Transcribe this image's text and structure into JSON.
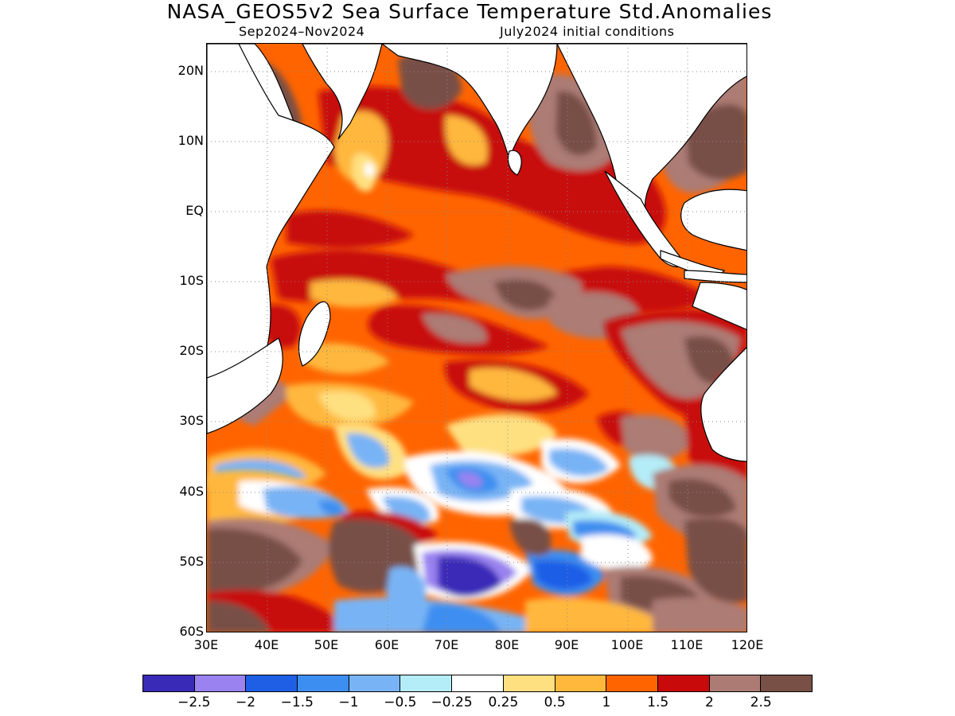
{
  "title": "NASA_GEOS5v2 Sea Surface Temperature Std.Anomalies",
  "subtitle_left": "Sep2024–Nov2024",
  "subtitle_right": "July2024 initial conditions",
  "map": {
    "lat_labels": [
      "20N",
      "10N",
      "EQ",
      "10S",
      "20S",
      "30S",
      "40S",
      "50S",
      "60S"
    ],
    "lon_labels": [
      "30E",
      "40E",
      "50E",
      "60E",
      "70E",
      "80E",
      "90E",
      "100E",
      "110E",
      "120E"
    ],
    "lon_range": [
      30,
      120
    ],
    "lat_range": [
      -60,
      24
    ],
    "land_color": "#ffffff",
    "coastline_color": "#000000",
    "gridline_style": "dotted"
  },
  "colorbar": {
    "colors": [
      "#3a2ab8",
      "#9a82f0",
      "#1e5fe6",
      "#3c8ef0",
      "#78b4f5",
      "#b4ecf8",
      "#ffffff",
      "#ffe080",
      "#ffb83c",
      "#ff6400",
      "#c80a0a",
      "#ac7c74",
      "#785046"
    ],
    "labels": [
      "−2.5",
      "−2",
      "−1.5",
      "−1",
      "−0.5",
      "−0.25",
      "0.25",
      "0.5",
      "1",
      "1.5",
      "2",
      "2.5"
    ]
  }
}
